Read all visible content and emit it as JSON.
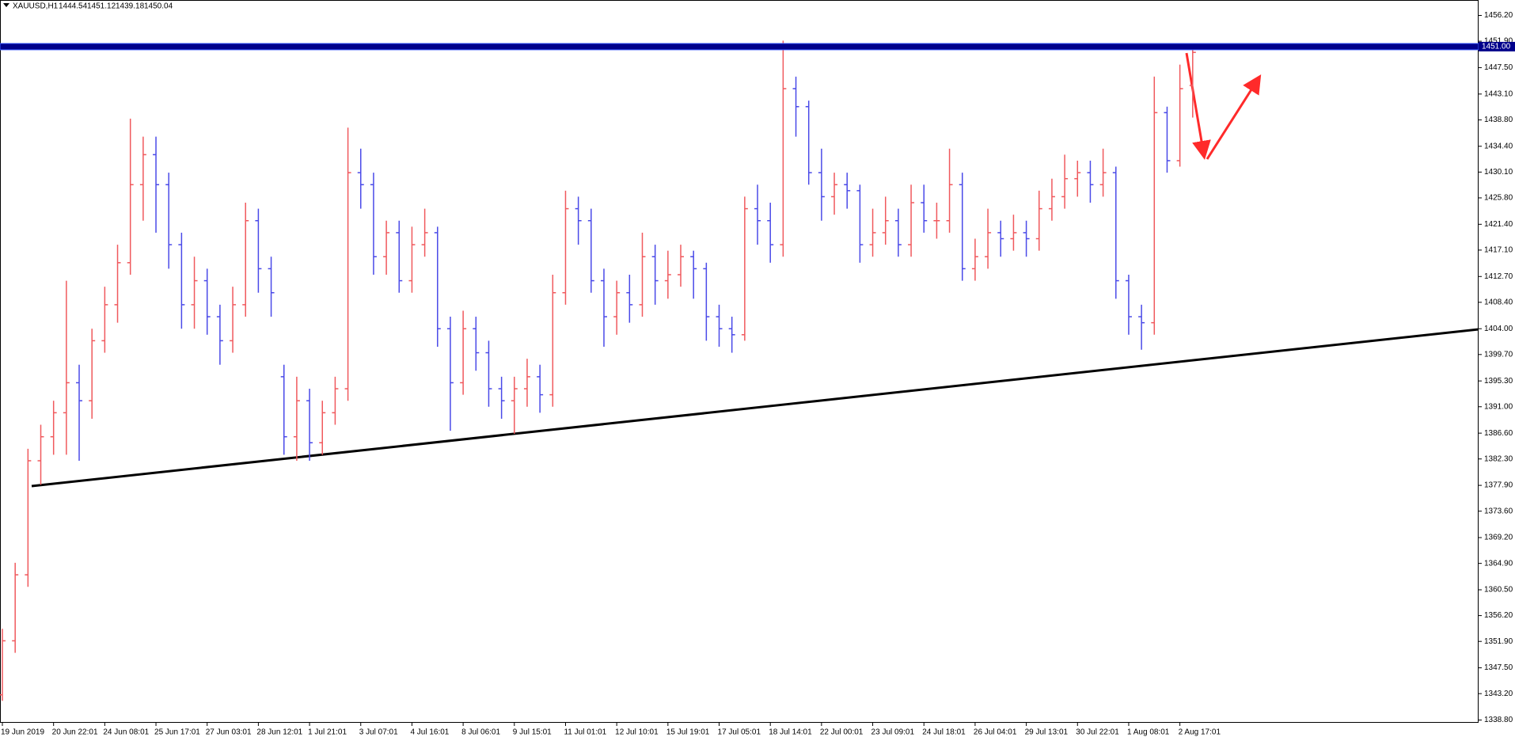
{
  "chart_data": {
    "type": "ohlc",
    "symbol": "XAUUSD,H1",
    "categories": [
      "19 Jun 2019",
      null,
      null,
      null,
      "20 Jun 22:01",
      null,
      null,
      null,
      "24 Jun 08:01",
      null,
      null,
      null,
      "25 Jun 17:01",
      null,
      null,
      null,
      "27 Jun 03:01",
      null,
      null,
      null,
      "28 Jun 12:01",
      null,
      null,
      null,
      "1 Jul 21:01",
      null,
      null,
      null,
      "3 Jul 07:01",
      null,
      null,
      null,
      "4 Jul 16:01",
      null,
      null,
      null,
      "8 Jul 06:01",
      null,
      null,
      null,
      "9 Jul 15:01",
      null,
      null,
      null,
      "11 Jul 01:01",
      null,
      null,
      null,
      "12 Jul 10:01",
      null,
      null,
      null,
      "15 Jul 19:01",
      null,
      null,
      null,
      "17 Jul 05:01",
      null,
      null,
      null,
      "18 Jul 14:01",
      null,
      null,
      null,
      "22 Jul 00:01",
      null,
      null,
      null,
      "23 Jul 09:01",
      null,
      null,
      null,
      "24 Jul 18:01",
      null,
      null,
      null,
      "26 Jul 04:01",
      null,
      null,
      null,
      "29 Jul 13:01",
      null,
      null,
      null,
      "30 Jul 22:01",
      null,
      null,
      null,
      "1 Aug 08:01",
      null,
      null,
      null,
      "2 Aug 17:01",
      null
    ],
    "open": [
      1343,
      1352,
      1363,
      1382,
      1386,
      1390,
      1395,
      1392,
      1402,
      1408,
      1415,
      1428,
      1433,
      1428,
      1418,
      1408,
      1412,
      1406,
      1402,
      1408,
      1422,
      1414,
      1396,
      1386,
      1392,
      1385,
      1390,
      1394,
      1430,
      1428,
      1416,
      1420,
      1412,
      1418,
      1420,
      1404,
      1395,
      1404,
      1400,
      1394,
      1392,
      1394,
      1396,
      1393,
      1410,
      1424,
      1422,
      1412,
      1406,
      1410,
      1408,
      1416,
      1412,
      1413,
      1416,
      1414,
      1406,
      1404,
      1403,
      1424,
      1422,
      1418,
      1444,
      1441,
      1430,
      1426,
      1428,
      1427,
      1418,
      1420,
      1422,
      1418,
      1425,
      1422,
      1422,
      1428,
      1414,
      1416,
      1420,
      1419,
      1420,
      1419,
      1424,
      1426,
      1429,
      1430,
      1428,
      1430,
      1412,
      1406,
      1405,
      1440,
      1432,
      1444.54
    ],
    "high": [
      1354,
      1365,
      1384,
      1388,
      1392,
      1412,
      1398,
      1404,
      1411,
      1418,
      1439,
      1436,
      1436,
      1430,
      1420,
      1416,
      1414,
      1408,
      1411,
      1425,
      1424,
      1416,
      1398,
      1396,
      1394,
      1392,
      1396,
      1437.5,
      1434,
      1430,
      1422,
      1422,
      1421,
      1424,
      1421,
      1406,
      1407,
      1406,
      1402,
      1396,
      1396,
      1399,
      1398,
      1413,
      1427,
      1426,
      1424,
      1414,
      1412,
      1413,
      1420,
      1418,
      1417,
      1418,
      1417,
      1415,
      1408,
      1406,
      1426,
      1428,
      1425,
      1452,
      1446,
      1442,
      1434,
      1430,
      1430,
      1428,
      1424,
      1426,
      1424,
      1428,
      1428,
      1425,
      1434,
      1430,
      1419,
      1424,
      1422,
      1423,
      1422,
      1427,
      1429,
      1433,
      1432,
      1432,
      1434,
      1431,
      1413,
      1408,
      1446,
      1441,
      1448,
      1451.12
    ],
    "low": [
      1342,
      1350,
      1361,
      1378,
      1383,
      1383,
      1382,
      1389,
      1400,
      1405,
      1413,
      1422,
      1420,
      1414,
      1404,
      1404,
      1403,
      1398,
      1400,
      1406,
      1410,
      1406,
      1383,
      1382,
      1382,
      1383,
      1388,
      1392,
      1424,
      1413,
      1413,
      1410,
      1410,
      1416,
      1401,
      1387,
      1393,
      1397,
      1391,
      1389,
      1386.5,
      1391,
      1390,
      1391,
      1408,
      1418,
      1410,
      1401,
      1403,
      1405,
      1406,
      1408,
      1409,
      1411,
      1409,
      1402,
      1401,
      1400,
      1402,
      1418,
      1415,
      1416,
      1436,
      1428,
      1422,
      1423,
      1424,
      1415,
      1416,
      1418,
      1416,
      1416,
      1420,
      1419,
      1420,
      1412,
      1412,
      1414,
      1416,
      1417,
      1416,
      1417,
      1422,
      1424,
      1426,
      1425,
      1426,
      1409,
      1403,
      1400.5,
      1403,
      1430,
      1431,
      1439.18
    ],
    "close": [
      1352,
      1363,
      1382,
      1386,
      1390,
      1395,
      1392,
      1402,
      1408,
      1415,
      1428,
      1433,
      1428,
      1418,
      1408,
      1412,
      1406,
      1402,
      1408,
      1422,
      1414,
      1410,
      1386,
      1392,
      1385,
      1390,
      1394,
      1430,
      1428,
      1416,
      1420,
      1412,
      1418,
      1420,
      1404,
      1395,
      1404,
      1400,
      1394,
      1392,
      1394,
      1396,
      1393,
      1410,
      1424,
      1422,
      1412,
      1406,
      1410,
      1408,
      1416,
      1412,
      1413,
      1416,
      1414,
      1406,
      1404,
      1403,
      1424,
      1422,
      1418,
      1444,
      1441,
      1430,
      1426,
      1428,
      1427,
      1418,
      1420,
      1422,
      1418,
      1425,
      1422,
      1422,
      1428,
      1414,
      1416,
      1420,
      1419,
      1420,
      1419,
      1424,
      1426,
      1429,
      1430,
      1428,
      1430,
      1412,
      1406,
      1405,
      1440,
      1432,
      1444,
      1450.04
    ],
    "up_color": "#f0595d",
    "down_color": "#4a4ae8",
    "ylim": [
      1338.34,
      1458.77
    ],
    "yticks": [
      {
        "value": 1338.8,
        "label": "1338.80"
      },
      {
        "value": 1343.2,
        "label": "1343.20"
      },
      {
        "value": 1347.5,
        "label": "1347.50"
      },
      {
        "value": 1351.9,
        "label": "1351.90"
      },
      {
        "value": 1356.2,
        "label": "1356.20"
      },
      {
        "value": 1360.5,
        "label": "1360.50"
      },
      {
        "value": 1364.9,
        "label": "1364.90"
      },
      {
        "value": 1369.2,
        "label": "1369.20"
      },
      {
        "value": 1373.6,
        "label": "1373.60"
      },
      {
        "value": 1377.9,
        "label": "1377.90"
      },
      {
        "value": 1382.3,
        "label": "1382.30"
      },
      {
        "value": 1386.6,
        "label": "1386.60"
      },
      {
        "value": 1391,
        "label": "1391.00"
      },
      {
        "value": 1395.3,
        "label": "1395.30"
      },
      {
        "value": 1399.7,
        "label": "1399.70"
      },
      {
        "value": 1404,
        "label": "1404.00"
      },
      {
        "value": 1408.4,
        "label": "1408.40"
      },
      {
        "value": 1412.7,
        "label": "1412.70"
      },
      {
        "value": 1417.1,
        "label": "1417.10"
      },
      {
        "value": 1421.4,
        "label": "1421.40"
      },
      {
        "value": 1425.8,
        "label": "1425.80"
      },
      {
        "value": 1430.1,
        "label": "1430.10"
      },
      {
        "value": 1434.4,
        "label": "1434.40"
      },
      {
        "value": 1438.8,
        "label": "1438.80"
      },
      {
        "value": 1443.1,
        "label": "1443.10"
      },
      {
        "value": 1447.5,
        "label": "1447.50"
      },
      {
        "value": 1451.9,
        "label": "1451.90"
      },
      {
        "value": 1456.2,
        "label": "1456.20"
      }
    ],
    "hline": {
      "value": 1451,
      "label": "1451.00",
      "color": "#00008b"
    }
  }
}
